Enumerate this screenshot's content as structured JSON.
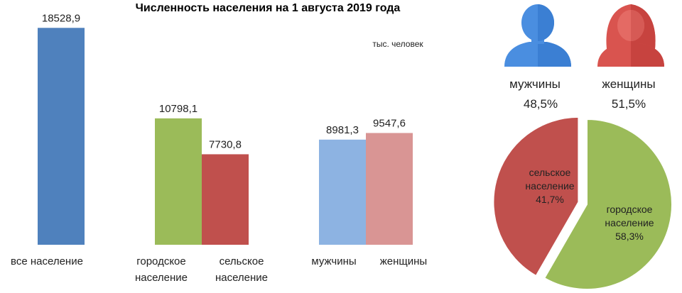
{
  "title": "Численность населения на 1 августа 2019 года",
  "unit_label": "тыс. человек",
  "colors": {
    "total": "#4f81bd",
    "urban": "#9bbb59",
    "rural": "#c0504d",
    "men": "#8db3e2",
    "women": "#d99594",
    "icon_men": "#4a8ee0",
    "icon_women": "#d9544f"
  },
  "gender_icons": {
    "men": {
      "label": "мужчины",
      "percent": "48,5%",
      "icon": "man-silhouette-icon"
    },
    "women": {
      "label": "женщины",
      "percent": "51,5%",
      "icon": "woman-silhouette-icon"
    }
  },
  "chart_data": [
    {
      "type": "bar",
      "title": "Численность населения на 1 августа 2019 года",
      "ylabel": "тыс. человек",
      "ylim": [
        0,
        20000
      ],
      "grid": false,
      "bars": [
        {
          "label": "все население",
          "label_lines": [
            "все население"
          ],
          "value": 18528.9,
          "value_label": "18528,9",
          "color": "#4f81bd"
        },
        {
          "label": "городское население",
          "label_lines": [
            "городское",
            "население"
          ],
          "value": 10798.1,
          "value_label": "10798,1",
          "color": "#9bbb59"
        },
        {
          "label": "сельское население",
          "label_lines": [
            "сельское",
            "население"
          ],
          "value": 7730.8,
          "value_label": "7730,8",
          "color": "#c0504d"
        },
        {
          "label": "мужчины",
          "label_lines": [
            "мужчины"
          ],
          "value": 8981.3,
          "value_label": "8981,3",
          "color": "#8db3e2"
        },
        {
          "label": "женщины",
          "label_lines": [
            "женщины"
          ],
          "value": 9547.6,
          "value_label": "9547,6",
          "color": "#d99594"
        }
      ]
    },
    {
      "type": "pie",
      "slices": [
        {
          "label": "городское население",
          "label_lines": [
            "городское",
            "население",
            "58,3%"
          ],
          "value": 58.3,
          "color": "#9bbb59"
        },
        {
          "label": "сельское население",
          "label_lines": [
            "сельское",
            "население",
            "41,7%"
          ],
          "value": 41.7,
          "color": "#c0504d"
        }
      ]
    }
  ]
}
